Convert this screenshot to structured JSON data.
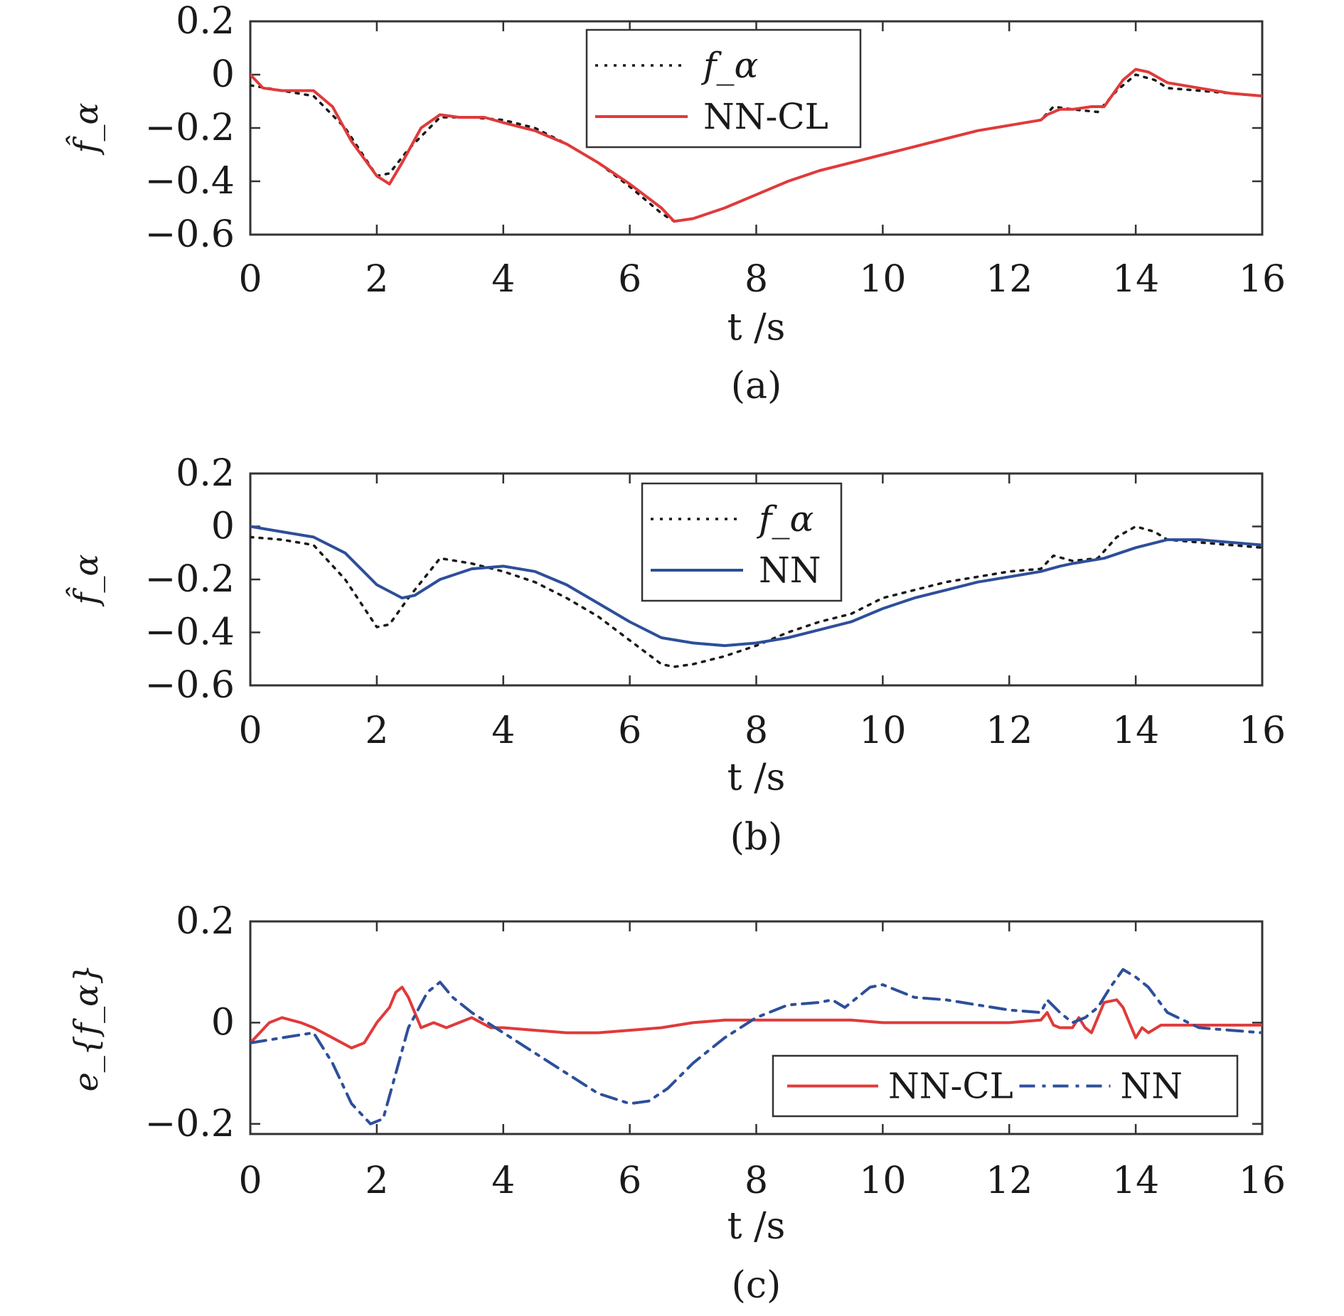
{
  "colors": {
    "reference": "#1a1a1a",
    "nn_cl": "#e03a3a",
    "nn": "#2d4f9a",
    "axis": "#333333"
  },
  "chart_data": [
    {
      "type": "line",
      "caption": "(a)",
      "xlabel": "t /s",
      "ylabel": "f̂_α",
      "xlim": [
        0,
        16
      ],
      "ylim": [
        -0.6,
        0.2
      ],
      "xticks": [
        0,
        2,
        4,
        6,
        8,
        10,
        12,
        14,
        16
      ],
      "xtick_labels": [
        "0",
        "2",
        "4",
        "6",
        "8",
        "10",
        "12",
        "14",
        "16"
      ],
      "yticks": [
        0.2,
        0,
        -0.2,
        -0.4,
        -0.6
      ],
      "ytick_labels": [
        "0.2",
        "0",
        "−0.2",
        "−0.4",
        "−0.6"
      ],
      "legend": {
        "position": "top-center",
        "entries": [
          "f_α",
          "NN-CL"
        ]
      },
      "series": [
        {
          "name": "f_α",
          "style": "dotted",
          "color_key": "reference",
          "x": [
            0,
            0.5,
            1.0,
            1.5,
            2.0,
            2.2,
            2.5,
            3.0,
            3.5,
            4.0,
            4.5,
            5.0,
            5.5,
            6.0,
            6.5,
            6.7,
            7.0,
            7.5,
            8.0,
            8.5,
            9.0,
            9.5,
            10.0,
            10.5,
            11.0,
            11.5,
            12.0,
            12.5,
            12.7,
            13.0,
            13.4,
            13.7,
            14.0,
            14.3,
            14.5,
            15.0,
            15.5,
            16.0
          ],
          "y": [
            -0.04,
            -0.06,
            -0.08,
            -0.2,
            -0.38,
            -0.37,
            -0.28,
            -0.16,
            -0.16,
            -0.17,
            -0.2,
            -0.26,
            -0.33,
            -0.42,
            -0.52,
            -0.55,
            -0.54,
            -0.5,
            -0.45,
            -0.4,
            -0.36,
            -0.33,
            -0.3,
            -0.27,
            -0.24,
            -0.21,
            -0.19,
            -0.17,
            -0.12,
            -0.13,
            -0.14,
            -0.06,
            0.0,
            -0.02,
            -0.05,
            -0.06,
            -0.07,
            -0.08
          ]
        },
        {
          "name": "NN-CL",
          "style": "solid",
          "color_key": "nn_cl",
          "x": [
            0,
            0.2,
            0.5,
            1.0,
            1.3,
            1.6,
            2.0,
            2.2,
            2.4,
            2.7,
            3.0,
            3.3,
            3.7,
            4.0,
            4.5,
            5.0,
            5.5,
            6.0,
            6.5,
            6.7,
            7.0,
            7.5,
            8.0,
            8.5,
            9.0,
            9.5,
            10.0,
            10.5,
            11.0,
            11.5,
            12.0,
            12.5,
            12.6,
            12.8,
            13.0,
            13.3,
            13.5,
            13.8,
            14.0,
            14.2,
            14.5,
            15.0,
            15.5,
            16.0
          ],
          "y": [
            0.0,
            -0.05,
            -0.06,
            -0.06,
            -0.12,
            -0.25,
            -0.38,
            -0.41,
            -0.33,
            -0.2,
            -0.15,
            -0.16,
            -0.16,
            -0.18,
            -0.21,
            -0.26,
            -0.33,
            -0.41,
            -0.5,
            -0.55,
            -0.54,
            -0.5,
            -0.45,
            -0.4,
            -0.36,
            -0.33,
            -0.3,
            -0.27,
            -0.24,
            -0.21,
            -0.19,
            -0.17,
            -0.15,
            -0.13,
            -0.13,
            -0.12,
            -0.12,
            -0.02,
            0.02,
            0.01,
            -0.03,
            -0.05,
            -0.07,
            -0.08
          ]
        }
      ]
    },
    {
      "type": "line",
      "caption": "(b)",
      "xlabel": "t /s",
      "ylabel": "f̂_α",
      "xlim": [
        0,
        16
      ],
      "ylim": [
        -0.6,
        0.2
      ],
      "xticks": [
        0,
        2,
        4,
        6,
        8,
        10,
        12,
        14,
        16
      ],
      "xtick_labels": [
        "0",
        "2",
        "4",
        "6",
        "8",
        "10",
        "12",
        "14",
        "16"
      ],
      "yticks": [
        0.2,
        0,
        -0.2,
        -0.4,
        -0.6
      ],
      "ytick_labels": [
        "0.2",
        "0",
        "−0.2",
        "−0.4",
        "−0.6"
      ],
      "legend": {
        "position": "top-center",
        "entries": [
          "f_α",
          "NN"
        ]
      },
      "series": [
        {
          "name": "f_α",
          "style": "dotted",
          "color_key": "reference",
          "x": [
            0,
            0.5,
            1.0,
            1.5,
            2.0,
            2.2,
            2.5,
            3.0,
            3.5,
            4.0,
            4.5,
            5.0,
            5.5,
            6.0,
            6.5,
            6.7,
            7.0,
            7.5,
            8.0,
            8.5,
            9.0,
            9.5,
            10.0,
            10.5,
            11.0,
            11.5,
            12.0,
            12.5,
            12.7,
            13.0,
            13.4,
            13.7,
            14.0,
            14.3,
            14.5,
            15.0,
            15.5,
            16.0
          ],
          "y": [
            -0.04,
            -0.05,
            -0.07,
            -0.2,
            -0.38,
            -0.37,
            -0.27,
            -0.12,
            -0.14,
            -0.17,
            -0.21,
            -0.27,
            -0.34,
            -0.43,
            -0.52,
            -0.53,
            -0.52,
            -0.49,
            -0.45,
            -0.4,
            -0.36,
            -0.33,
            -0.27,
            -0.24,
            -0.21,
            -0.19,
            -0.17,
            -0.16,
            -0.11,
            -0.13,
            -0.12,
            -0.04,
            0.0,
            -0.02,
            -0.05,
            -0.06,
            -0.07,
            -0.08
          ]
        },
        {
          "name": "NN",
          "style": "solid",
          "color_key": "nn",
          "x": [
            0,
            0.5,
            1.0,
            1.5,
            2.0,
            2.4,
            2.6,
            3.0,
            3.5,
            4.0,
            4.5,
            5.0,
            5.5,
            6.0,
            6.5,
            7.0,
            7.5,
            8.0,
            8.5,
            9.0,
            9.5,
            10.0,
            10.5,
            11.0,
            11.5,
            12.0,
            12.5,
            12.8,
            13.0,
            13.5,
            14.0,
            14.5,
            15.0,
            15.5,
            16.0
          ],
          "y": [
            0.0,
            -0.02,
            -0.04,
            -0.1,
            -0.22,
            -0.27,
            -0.26,
            -0.2,
            -0.16,
            -0.15,
            -0.17,
            -0.22,
            -0.29,
            -0.36,
            -0.42,
            -0.44,
            -0.45,
            -0.44,
            -0.42,
            -0.39,
            -0.36,
            -0.31,
            -0.27,
            -0.24,
            -0.21,
            -0.19,
            -0.17,
            -0.15,
            -0.14,
            -0.12,
            -0.08,
            -0.05,
            -0.05,
            -0.06,
            -0.07
          ]
        }
      ]
    },
    {
      "type": "line",
      "caption": "(c)",
      "xlabel": "t /s",
      "ylabel": "e_{f_α}",
      "xlim": [
        0,
        16
      ],
      "ylim": [
        -0.22,
        0.2
      ],
      "xticks": [
        0,
        2,
        4,
        6,
        8,
        10,
        12,
        14,
        16
      ],
      "xtick_labels": [
        "0",
        "2",
        "4",
        "6",
        "8",
        "10",
        "12",
        "14",
        "16"
      ],
      "yticks": [
        0.2,
        0,
        -0.2
      ],
      "ytick_labels": [
        "0.2",
        "0",
        "−0.2"
      ],
      "legend": {
        "position": "bottom-right",
        "entries": [
          "NN-CL",
          "NN"
        ]
      },
      "series": [
        {
          "name": "NN-CL",
          "style": "solid",
          "color_key": "nn_cl",
          "x": [
            0,
            0.3,
            0.5,
            0.8,
            1.0,
            1.3,
            1.6,
            1.8,
            2.0,
            2.2,
            2.3,
            2.4,
            2.5,
            2.7,
            2.9,
            3.1,
            3.3,
            3.5,
            3.8,
            4.0,
            4.5,
            5.0,
            5.5,
            6.0,
            6.5,
            7.0,
            7.5,
            8.0,
            8.5,
            9.0,
            9.5,
            10.0,
            11.0,
            12.0,
            12.5,
            12.6,
            12.7,
            12.8,
            13.0,
            13.1,
            13.2,
            13.3,
            13.5,
            13.7,
            13.8,
            13.9,
            14.0,
            14.1,
            14.2,
            14.4,
            14.6,
            15.0,
            15.5,
            16.0
          ],
          "y": [
            -0.04,
            0.0,
            0.01,
            0.0,
            -0.01,
            -0.03,
            -0.05,
            -0.04,
            0.0,
            0.03,
            0.06,
            0.07,
            0.05,
            -0.01,
            0.0,
            -0.01,
            0.0,
            0.01,
            -0.01,
            -0.01,
            -0.015,
            -0.02,
            -0.02,
            -0.015,
            -0.01,
            0.0,
            0.005,
            0.005,
            0.005,
            0.005,
            0.005,
            0.0,
            0.0,
            0.0,
            0.005,
            0.02,
            -0.005,
            -0.01,
            -0.01,
            0.01,
            -0.01,
            -0.02,
            0.04,
            0.045,
            0.03,
            0.0,
            -0.03,
            -0.01,
            -0.02,
            -0.005,
            -0.005,
            -0.005,
            -0.005,
            -0.005
          ]
        },
        {
          "name": "NN",
          "style": "dashdot",
          "color_key": "nn",
          "x": [
            0,
            0.5,
            1.0,
            1.3,
            1.6,
            1.9,
            2.1,
            2.3,
            2.5,
            2.8,
            3.0,
            3.2,
            3.5,
            4.0,
            4.5,
            5.0,
            5.5,
            6.0,
            6.3,
            6.6,
            7.0,
            7.5,
            8.0,
            8.5,
            9.0,
            9.2,
            9.4,
            9.6,
            9.8,
            10.0,
            10.3,
            10.5,
            11.0,
            11.5,
            12.0,
            12.5,
            12.6,
            12.8,
            13.0,
            13.2,
            13.4,
            13.6,
            13.8,
            14.0,
            14.1,
            14.2,
            14.5,
            15.0,
            15.5,
            16.0
          ],
          "y": [
            -0.04,
            -0.03,
            -0.02,
            -0.08,
            -0.16,
            -0.2,
            -0.19,
            -0.1,
            -0.01,
            0.06,
            0.08,
            0.05,
            0.02,
            -0.02,
            -0.06,
            -0.1,
            -0.14,
            -0.16,
            -0.155,
            -0.13,
            -0.08,
            -0.03,
            0.01,
            0.035,
            0.04,
            0.045,
            0.03,
            0.05,
            0.07,
            0.075,
            0.06,
            0.05,
            0.045,
            0.035,
            0.025,
            0.02,
            0.045,
            0.02,
            0.0,
            0.01,
            0.03,
            0.07,
            0.105,
            0.09,
            0.08,
            0.07,
            0.02,
            -0.01,
            -0.015,
            -0.02
          ]
        }
      ]
    }
  ]
}
